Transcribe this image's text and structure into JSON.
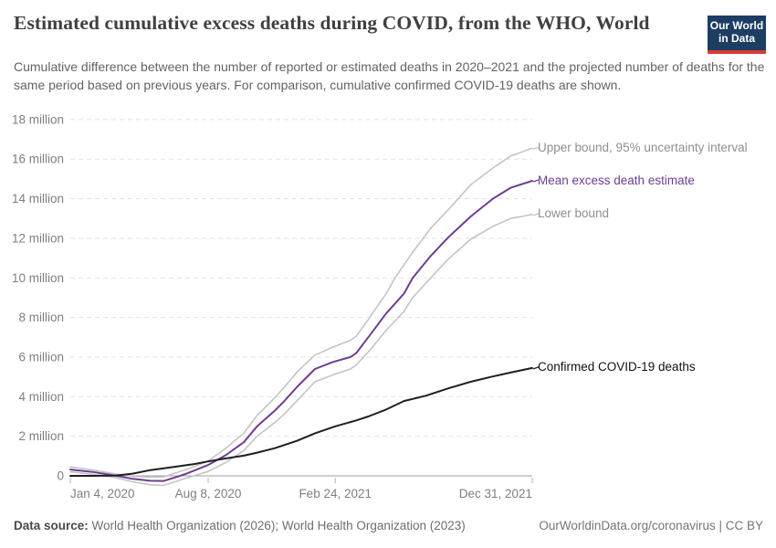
{
  "header": {
    "logo": {
      "line1": "Our World",
      "line2": "in Data",
      "bg_color": "#1d3d63",
      "accent_color": "#d73c34"
    }
  },
  "chart_data": {
    "type": "line",
    "title": "Estimated cumulative excess deaths during COVID, from the WHO, World",
    "subtitle": "Cumulative difference between the number of reported or estimated deaths in 2020–2021 and the projected number of deaths for the same period based on previous years. For comparison, cumulative confirmed COVID-19 deaths are shown.",
    "unit": "million deaths",
    "xlim": [
      "2020-01-04",
      "2021-12-31"
    ],
    "ylim": [
      -0.6,
      18
    ],
    "grid": "dashed-horizontal",
    "legend_position": "right-of-line-ends",
    "y_ticks": [
      {
        "value": 0,
        "label": "0"
      },
      {
        "value": 2,
        "label": "2 million"
      },
      {
        "value": 4,
        "label": "4 million"
      },
      {
        "value": 6,
        "label": "6 million"
      },
      {
        "value": 8,
        "label": "8 million"
      },
      {
        "value": 10,
        "label": "10 million"
      },
      {
        "value": 12,
        "label": "12 million"
      },
      {
        "value": 14,
        "label": "14 million"
      },
      {
        "value": 16,
        "label": "16 million"
      },
      {
        "value": 18,
        "label": "18 million"
      }
    ],
    "x_ticks": [
      {
        "date": "2020-01-04",
        "label": "Jan 4, 2020"
      },
      {
        "date": "2020-08-08",
        "label": "Aug 8, 2020"
      },
      {
        "date": "2021-02-24",
        "label": "Feb 24, 2021"
      },
      {
        "date": "2021-12-31",
        "label": "Dec 31, 2021"
      }
    ],
    "series": [
      {
        "name": "Upper bound, 95% uncertainty interval",
        "color": "#c4c4c4",
        "label_color": "#8f8f8f",
        "line_width": 1.6,
        "points": [
          [
            "2020-01-04",
            0.45
          ],
          [
            "2020-02-08",
            0.3
          ],
          [
            "2020-03-14",
            0.1
          ],
          [
            "2020-04-11",
            -0.02
          ],
          [
            "2020-05-09",
            -0.07
          ],
          [
            "2020-05-30",
            -0.05
          ],
          [
            "2020-06-15",
            0.12
          ],
          [
            "2020-07-04",
            0.32
          ],
          [
            "2020-07-18",
            0.48
          ],
          [
            "2020-08-08",
            0.75
          ],
          [
            "2020-09-05",
            1.4
          ],
          [
            "2020-10-03",
            2.15
          ],
          [
            "2020-10-24",
            3.05
          ],
          [
            "2020-11-21",
            3.95
          ],
          [
            "2020-12-05",
            4.45
          ],
          [
            "2020-12-26",
            5.25
          ],
          [
            "2021-01-23",
            6.1
          ],
          [
            "2021-02-20",
            6.5
          ],
          [
            "2021-03-20",
            6.85
          ],
          [
            "2021-03-29",
            7.05
          ],
          [
            "2021-04-17",
            7.9
          ],
          [
            "2021-05-15",
            9.2
          ],
          [
            "2021-05-29",
            10.0
          ],
          [
            "2021-06-26",
            11.3
          ],
          [
            "2021-07-24",
            12.5
          ],
          [
            "2021-08-21",
            13.45
          ],
          [
            "2021-09-25",
            14.7
          ],
          [
            "2021-10-30",
            15.55
          ],
          [
            "2021-11-27",
            16.15
          ],
          [
            "2021-12-31",
            16.55
          ]
        ]
      },
      {
        "name": "Mean excess death estimate",
        "color": "#6d3e91",
        "label_color": "#6d3e91",
        "line_width": 2,
        "points": [
          [
            "2020-01-04",
            0.32
          ],
          [
            "2020-02-08",
            0.2
          ],
          [
            "2020-03-14",
            0.02
          ],
          [
            "2020-04-11",
            -0.15
          ],
          [
            "2020-05-09",
            -0.25
          ],
          [
            "2020-05-30",
            -0.26
          ],
          [
            "2020-06-15",
            -0.1
          ],
          [
            "2020-07-04",
            0.1
          ],
          [
            "2020-07-18",
            0.28
          ],
          [
            "2020-08-08",
            0.55
          ],
          [
            "2020-09-05",
            1.05
          ],
          [
            "2020-10-03",
            1.7
          ],
          [
            "2020-10-24",
            2.5
          ],
          [
            "2020-11-21",
            3.3
          ],
          [
            "2020-12-05",
            3.75
          ],
          [
            "2020-12-26",
            4.5
          ],
          [
            "2021-01-23",
            5.4
          ],
          [
            "2021-02-20",
            5.75
          ],
          [
            "2021-03-20",
            6.0
          ],
          [
            "2021-03-29",
            6.2
          ],
          [
            "2021-04-17",
            7.0
          ],
          [
            "2021-05-15",
            8.2
          ],
          [
            "2021-06-12",
            9.2
          ],
          [
            "2021-06-26",
            10.0
          ],
          [
            "2021-07-24",
            11.1
          ],
          [
            "2021-08-21",
            12.05
          ],
          [
            "2021-09-25",
            13.1
          ],
          [
            "2021-10-30",
            14.0
          ],
          [
            "2021-11-27",
            14.55
          ],
          [
            "2021-12-31",
            14.9
          ]
        ]
      },
      {
        "name": "Lower bound",
        "color": "#c4c4c4",
        "label_color": "#8f8f8f",
        "line_width": 1.6,
        "points": [
          [
            "2020-01-04",
            0.2
          ],
          [
            "2020-02-08",
            0.08
          ],
          [
            "2020-03-14",
            -0.08
          ],
          [
            "2020-04-11",
            -0.3
          ],
          [
            "2020-05-09",
            -0.45
          ],
          [
            "2020-05-30",
            -0.48
          ],
          [
            "2020-06-15",
            -0.32
          ],
          [
            "2020-07-04",
            -0.12
          ],
          [
            "2020-07-18",
            0.02
          ],
          [
            "2020-08-08",
            0.22
          ],
          [
            "2020-09-05",
            0.68
          ],
          [
            "2020-10-03",
            1.28
          ],
          [
            "2020-10-24",
            2.0
          ],
          [
            "2020-11-21",
            2.7
          ],
          [
            "2020-12-05",
            3.1
          ],
          [
            "2020-12-26",
            3.8
          ],
          [
            "2021-01-23",
            4.75
          ],
          [
            "2021-02-20",
            5.1
          ],
          [
            "2021-03-20",
            5.4
          ],
          [
            "2021-03-29",
            5.6
          ],
          [
            "2021-04-17",
            6.25
          ],
          [
            "2021-05-15",
            7.35
          ],
          [
            "2021-06-12",
            8.3
          ],
          [
            "2021-06-26",
            9.0
          ],
          [
            "2021-07-24",
            10.0
          ],
          [
            "2021-08-21",
            10.95
          ],
          [
            "2021-09-25",
            11.95
          ],
          [
            "2021-10-30",
            12.6
          ],
          [
            "2021-11-27",
            13.0
          ],
          [
            "2021-12-31",
            13.2
          ]
        ]
      },
      {
        "name": "Confirmed COVID-19 deaths",
        "color": "#1f1f1f",
        "label_color": "#111111",
        "line_width": 2,
        "points": [
          [
            "2020-01-04",
            0.0
          ],
          [
            "2020-02-08",
            0.0
          ],
          [
            "2020-03-14",
            0.01
          ],
          [
            "2020-04-11",
            0.11
          ],
          [
            "2020-05-09",
            0.29
          ],
          [
            "2020-06-15",
            0.45
          ],
          [
            "2020-07-18",
            0.6
          ],
          [
            "2020-08-08",
            0.73
          ],
          [
            "2020-09-05",
            0.88
          ],
          [
            "2020-10-03",
            1.02
          ],
          [
            "2020-10-24",
            1.17
          ],
          [
            "2020-11-21",
            1.4
          ],
          [
            "2020-12-26",
            1.77
          ],
          [
            "2021-01-23",
            2.15
          ],
          [
            "2021-02-24",
            2.5
          ],
          [
            "2021-03-29",
            2.8
          ],
          [
            "2021-04-17",
            3.0
          ],
          [
            "2021-05-15",
            3.35
          ],
          [
            "2021-06-12",
            3.78
          ],
          [
            "2021-07-17",
            4.05
          ],
          [
            "2021-08-21",
            4.42
          ],
          [
            "2021-09-25",
            4.75
          ],
          [
            "2021-10-30",
            5.02
          ],
          [
            "2021-11-27",
            5.22
          ],
          [
            "2021-12-31",
            5.45
          ]
        ]
      }
    ],
    "colors": {
      "gridline": "#e2e2e2",
      "zero_line": "#9e9e9e",
      "tick_mark": "#b3b3b3",
      "axis_text": "#7f7f7f"
    }
  },
  "footer": {
    "source_label": "Data source:",
    "source_text": " World Health Organization (2026); World Health Organization (2023)",
    "credit_link": "OurWorldinData.org/coronavirus",
    "credit_suffix": " | CC BY"
  }
}
